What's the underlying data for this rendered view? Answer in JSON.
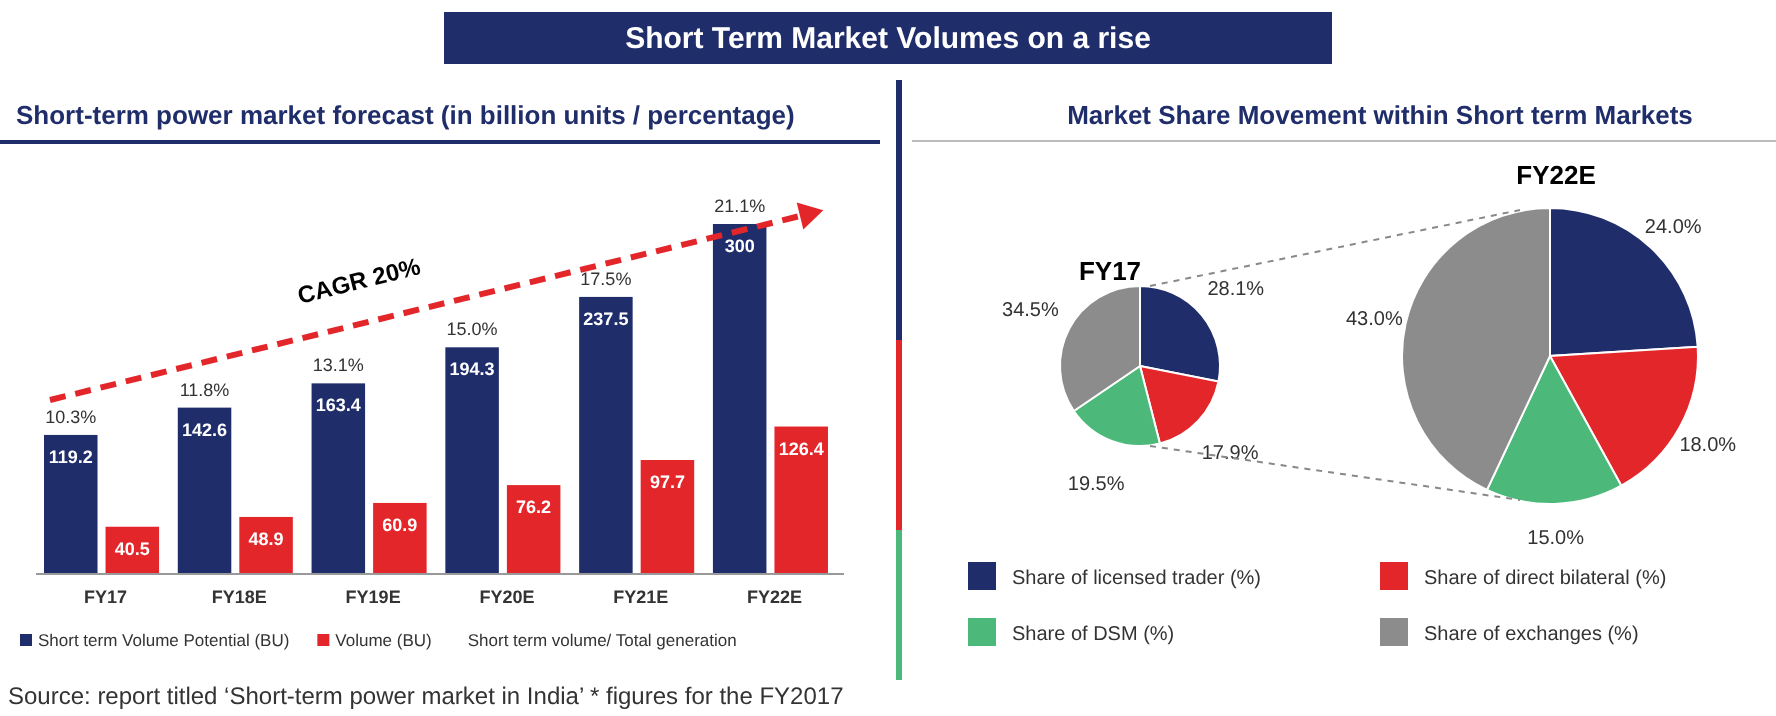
{
  "chart_data": [
    {
      "type": "bar",
      "title": "Short-term power market forecast (in billion units / percentage)",
      "categories": [
        "FY17",
        "FY18E",
        "FY19E",
        "FY20E",
        "FY21E",
        "FY22E"
      ],
      "series": [
        {
          "name": "Short term Volume Potential (BU)",
          "color": "#1f2d6b",
          "values": [
            119.2,
            142.6,
            163.4,
            194.3,
            237.5,
            300
          ]
        },
        {
          "name": "Volume (BU)",
          "color": "#e3262a",
          "values": [
            40.5,
            48.9,
            60.9,
            76.2,
            97.7,
            126.4
          ]
        }
      ],
      "data_labels": true,
      "legend": "bottom",
      "annotations": [
        "Short Term Market Volumes on a rise",
        "CAGR 20%",
        "Short term volume/ Total generation",
        "Source: report titled ‘Short-term power market in India’ * figures for the FY2017",
        "10.3%",
        "11.8%",
        "13.1%",
        "15.0%",
        "17.5%",
        "21.1%"
      ]
    },
    {
      "type": "pie",
      "title": "Market Share Movement within Short term Markets",
      "subtitle": "FY17",
      "categories": [
        "Share of licensed trader (%)",
        "Share of direct bilateral (%)",
        "Share of DSM (%)",
        "Share of exchanges (%)"
      ],
      "values": [
        28.1,
        17.9,
        19.5,
        34.5
      ],
      "colors": [
        "#1f2d6b",
        "#e3262a",
        "#4cb87a",
        "#8c8c8c"
      ],
      "value_labels": [
        "28.1%",
        "17.9%",
        "19.5%",
        "34.5%"
      ],
      "legend": "bottom"
    },
    {
      "type": "pie",
      "title": "FY22E",
      "categories": [
        null,
        null,
        null,
        null
      ],
      "values": [
        24.0,
        18.0,
        15.0,
        43.0
      ],
      "colors": [
        "#1f2d6b",
        "#e3262a",
        "#4cb87a",
        "#8c8c8c"
      ],
      "value_labels": [
        "24.0%",
        "18.0%",
        "15.0%",
        "43.0%"
      ]
    }
  ]
}
